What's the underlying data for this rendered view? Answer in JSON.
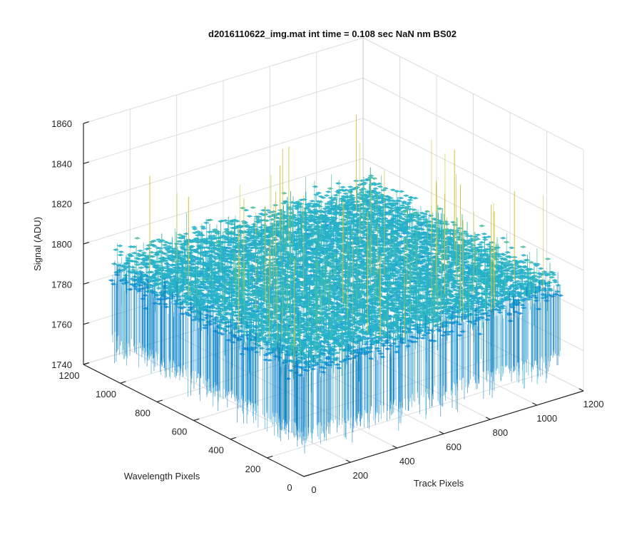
{
  "chart_data": {
    "type": "surface",
    "title": "d2016110622_img.mat int time = 0.108 sec  NaN nm BS02",
    "xlabel": "Track Pixels",
    "ylabel": "Wavelength Pixels",
    "zlabel": "Signal (ADU)",
    "xlim": [
      0,
      1200
    ],
    "ylim": [
      0,
      1200
    ],
    "zlim": [
      1740,
      1860
    ],
    "x_ticks": [
      0,
      200,
      400,
      600,
      800,
      1000,
      1200
    ],
    "y_ticks": [
      0,
      200,
      400,
      600,
      800,
      1000,
      1200
    ],
    "z_ticks": [
      1740,
      1760,
      1780,
      1800,
      1820,
      1840,
      1860
    ],
    "x_tick_labels": [
      "0",
      "200",
      "400",
      "600",
      "800",
      "1000",
      "1200"
    ],
    "y_tick_labels": [
      "0",
      "200",
      "400",
      "600",
      "800",
      "1000",
      "1200"
    ],
    "z_tick_labels": [
      "1740",
      "1760",
      "1780",
      "1800",
      "1820",
      "1840",
      "1860"
    ],
    "data_extent": {
      "x": [
        0,
        1100
      ],
      "y": [
        0,
        1050
      ]
    },
    "signal_summary": {
      "mean": 1795,
      "typical_min": 1765,
      "typical_max": 1825,
      "peak_max": 1845,
      "dip_min": 1748
    },
    "grid": true,
    "colormap": "parula",
    "colormap_colors": [
      "#0072bd",
      "#1a95d8",
      "#27b2c8",
      "#4dbf9e",
      "#9cc35c",
      "#d3c23c"
    ]
  }
}
